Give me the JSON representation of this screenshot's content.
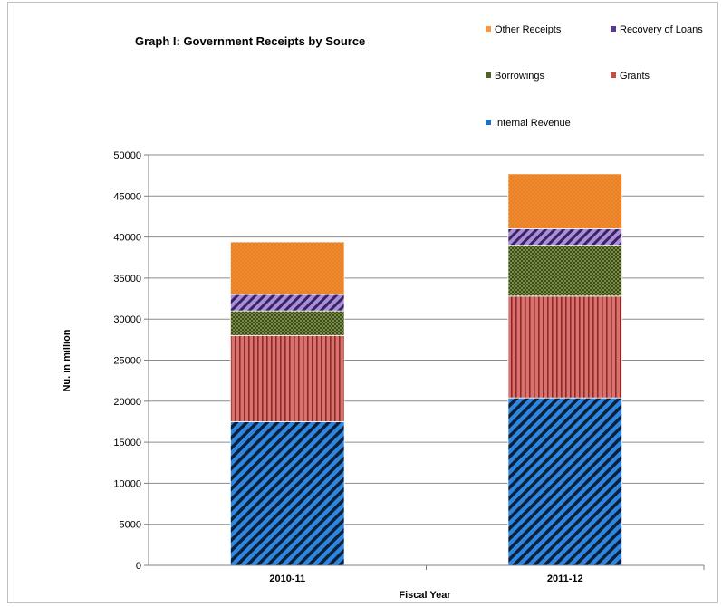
{
  "chart_data": {
    "type": "bar",
    "stacked": true,
    "title": "Graph I: Government Receipts by Source",
    "xlabel": "Fiscal Year",
    "ylabel": "Nu. in million",
    "categories": [
      "2010-11",
      "2011-12"
    ],
    "ylim": [
      0,
      50000
    ],
    "yticks": [
      0,
      5000,
      10000,
      15000,
      20000,
      25000,
      30000,
      35000,
      40000,
      45000,
      50000
    ],
    "grid": true,
    "legend_position": "top-right",
    "series": [
      {
        "name": "Internal Revenue",
        "values": [
          17500,
          20400
        ],
        "color": "#1f6fc8",
        "pattern": "diagonal-stripes"
      },
      {
        "name": "Grants",
        "values": [
          10500,
          12400
        ],
        "color": "#c0504d",
        "pattern": "vertical-stripes"
      },
      {
        "name": "Borrowings",
        "values": [
          3000,
          6200
        ],
        "color": "#4f6228",
        "pattern": "dots"
      },
      {
        "name": "Recovery of Loans",
        "values": [
          2000,
          2000
        ],
        "color": "#5b3a8c",
        "pattern": "diagonal-stripes"
      },
      {
        "name": "Other Receipts",
        "values": [
          6400,
          6700
        ],
        "color": "#f79646",
        "pattern": "dots"
      }
    ]
  }
}
